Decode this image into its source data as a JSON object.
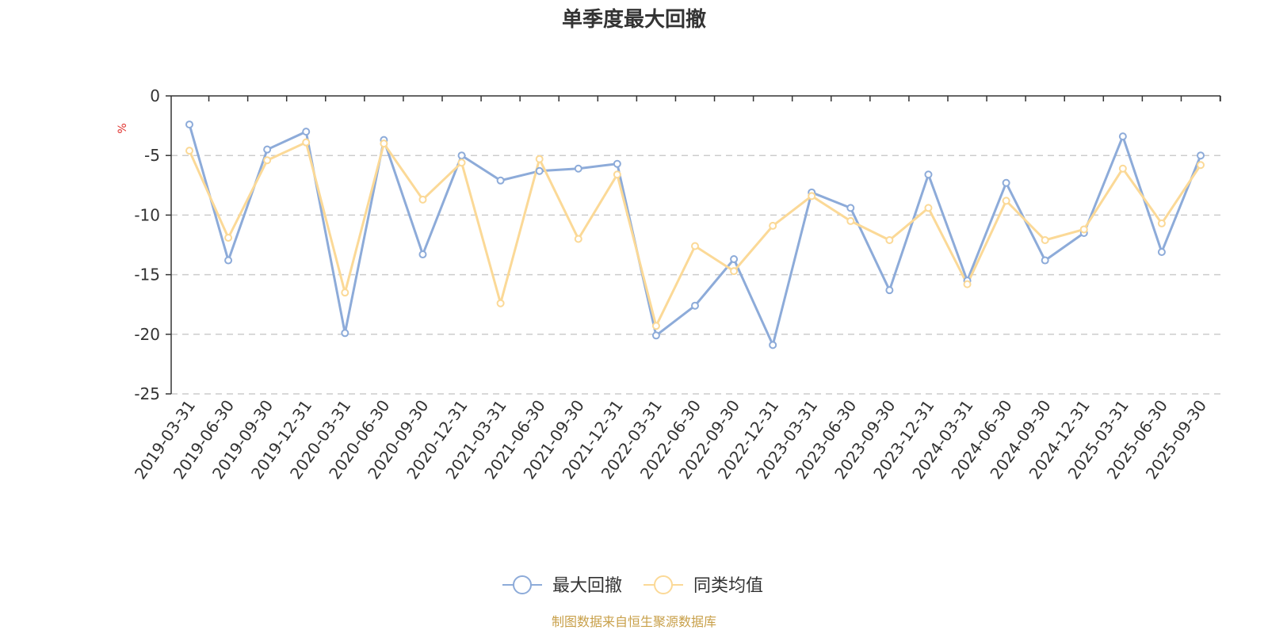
{
  "chart_data": {
    "type": "line",
    "title": "单季度最大回撤",
    "ylabel": "%",
    "xlabel": "",
    "ylim": [
      -25,
      0
    ],
    "yticks": [
      0,
      -5,
      -10,
      -15,
      -20,
      -25
    ],
    "grid": true,
    "categories": [
      "2019-03-31",
      "2019-06-30",
      "2019-09-30",
      "2019-12-31",
      "2020-03-31",
      "2020-06-30",
      "2020-09-30",
      "2020-12-31",
      "2021-03-31",
      "2021-06-30",
      "2021-09-30",
      "2021-12-31",
      "2022-03-31",
      "2022-06-30",
      "2022-09-30",
      "2022-12-31",
      "2023-03-31",
      "2023-06-30",
      "2023-09-30",
      "2023-12-31",
      "2024-03-31",
      "2024-06-30",
      "2024-09-30",
      "2024-12-31",
      "2025-03-31",
      "2025-06-30",
      "2025-09-30"
    ],
    "series": [
      {
        "name": "最大回撤",
        "color": "#8dabd9",
        "values": [
          -2.4,
          -13.8,
          -4.5,
          -3.0,
          -19.9,
          -3.7,
          -13.3,
          -5.0,
          -7.1,
          -6.3,
          -6.1,
          -5.7,
          -20.1,
          -17.6,
          -13.7,
          -20.9,
          -8.1,
          -9.4,
          -16.3,
          -6.6,
          -15.5,
          -7.3,
          -13.8,
          -11.5,
          -3.4,
          -13.1,
          -5.0
        ]
      },
      {
        "name": "同类均值",
        "color": "#fbd997",
        "values": [
          -4.6,
          -11.9,
          -5.4,
          -3.9,
          -16.5,
          -4.0,
          -8.7,
          -5.6,
          -17.4,
          -5.3,
          -12.0,
          -6.6,
          -19.3,
          -12.6,
          -14.7,
          -10.9,
          -8.4,
          -10.5,
          -12.1,
          -9.4,
          -15.8,
          -8.8,
          -12.1,
          -11.2,
          -6.1,
          -10.7,
          -5.8
        ]
      }
    ],
    "source": "制图数据来自恒生聚源数据库",
    "source_color": "#c8a04a",
    "unit_color": "#e0312d"
  }
}
